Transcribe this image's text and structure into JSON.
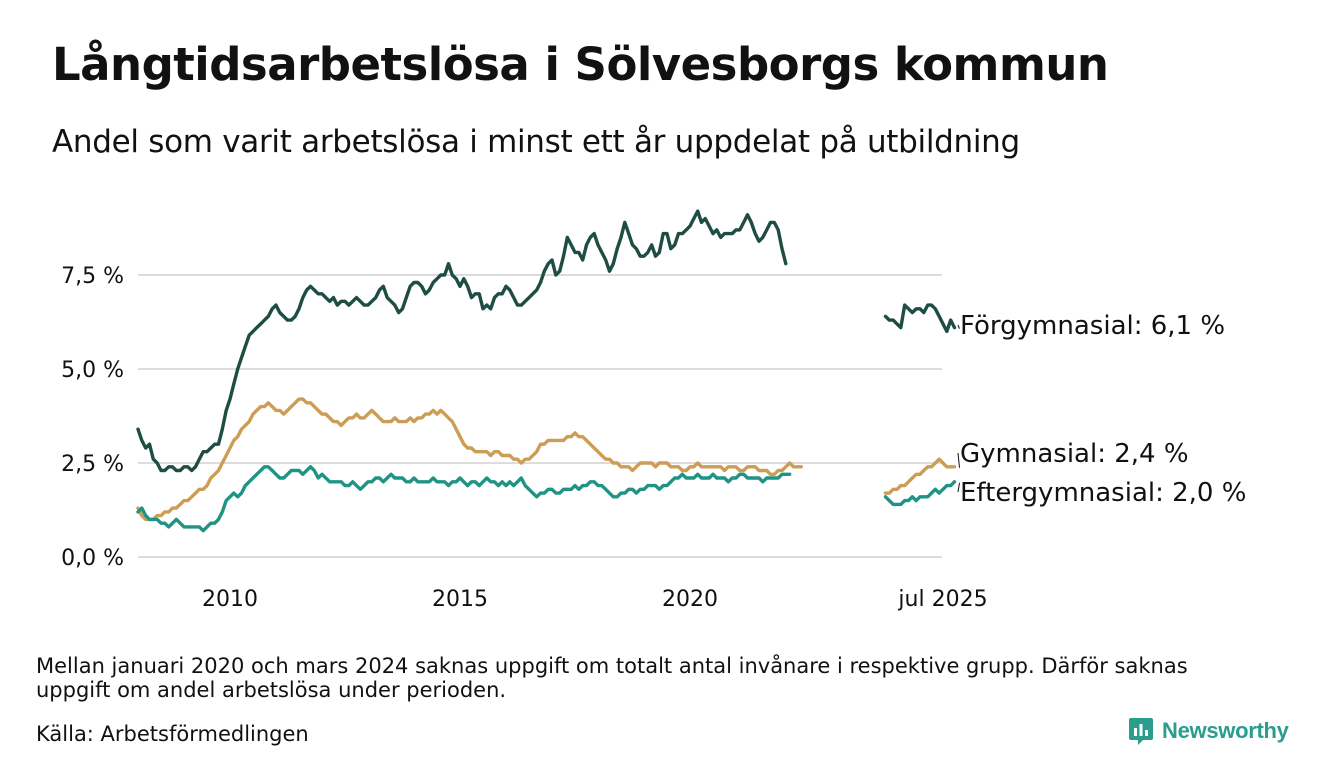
{
  "header": {
    "title": "Långtidsarbetslösa i Sölvesborgs kommun",
    "subtitle": "Andel som varit arbetslösa i minst ett år uppdelat på utbildning"
  },
  "footer": {
    "note": "Mellan januari 2020 och mars 2024 saknas uppgift om totalt antal invånare i respektive grupp. Därför saknas uppgift om andel arbetslösa under perioden.",
    "source": "Källa: Arbetsförmedlingen",
    "brand": "Newsworthy",
    "brand_color": "#2a9d8f"
  },
  "chart_data": {
    "type": "line",
    "title": "Långtidsarbetslösa i Sölvesborgs kommun",
    "subtitle": "Andel som varit arbetslösa i minst ett år uppdelat på utbildning",
    "xlabel": "",
    "ylabel": "",
    "x_ticks": [
      "2010",
      "2015",
      "2020",
      "jul 2025"
    ],
    "y_ticks": [
      "0,0 %",
      "2,5 %",
      "5,0 %",
      "7,5 %"
    ],
    "ylim": [
      0,
      9.6
    ],
    "grid": "horizontal",
    "legend": "direct labels at line ends (right)",
    "series": [
      {
        "name": "Förgymnasial",
        "end_label": "Förgymnasial: 6,1 %",
        "color": "#1e4d44",
        "segments": [
          {
            "x_start": "2008-01",
            "values": [
              3.4,
              3.1,
              2.9,
              3.0,
              2.6,
              2.5,
              2.3,
              2.3,
              2.4,
              2.4,
              2.3,
              2.3,
              2.4,
              2.4,
              2.3,
              2.4,
              2.6,
              2.8,
              2.8,
              2.9,
              3.0,
              3.0,
              3.4,
              3.9,
              4.2,
              4.6,
              5.0,
              5.3,
              5.6,
              5.9,
              6.0,
              6.1,
              6.2,
              6.3,
              6.4,
              6.6,
              6.7,
              6.5,
              6.4,
              6.3,
              6.3,
              6.4,
              6.6,
              6.9,
              7.1,
              7.2,
              7.1,
              7.0,
              7.0,
              6.9,
              6.8,
              6.9,
              6.7,
              6.8,
              6.8,
              6.7,
              6.8,
              6.9,
              6.8,
              6.7,
              6.7,
              6.8,
              6.9,
              7.1,
              7.2,
              6.9,
              6.8,
              6.7,
              6.5,
              6.6,
              6.9,
              7.2,
              7.3,
              7.3,
              7.2,
              7.0,
              7.1,
              7.3,
              7.4,
              7.5,
              7.5,
              7.8,
              7.5,
              7.4,
              7.2,
              7.4,
              7.2,
              6.9,
              7.0,
              7.0,
              6.6,
              6.7,
              6.6,
              6.9,
              7.0,
              7.0,
              7.2,
              7.1,
              6.9,
              6.7,
              6.7,
              6.8,
              6.9,
              7.0,
              7.1,
              7.3,
              7.6,
              7.8,
              7.9,
              7.5,
              7.6,
              8.0,
              8.5,
              8.3,
              8.1,
              8.1,
              7.9,
              8.3,
              8.5,
              8.6,
              8.3,
              8.1,
              7.9,
              7.6,
              7.8,
              8.2,
              8.5,
              8.9,
              8.6,
              8.3,
              8.2,
              8.0,
              8.0,
              8.1,
              8.3,
              8.0,
              8.1,
              8.6,
              8.6,
              8.2,
              8.3,
              8.6,
              8.6,
              8.7,
              8.8,
              9.0,
              9.2,
              8.9,
              9.0,
              8.8,
              8.6,
              8.7,
              8.5,
              8.6,
              8.6,
              8.6,
              8.7,
              8.7,
              8.9,
              9.1,
              8.9,
              8.6,
              8.4,
              8.5,
              8.7,
              8.9,
              8.9,
              8.7,
              8.2,
              7.8
            ]
          },
          {
            "x_start": "2024-04",
            "values": [
              6.4,
              6.3,
              6.3,
              6.2,
              6.1,
              6.7,
              6.6,
              6.5,
              6.6,
              6.6,
              6.5,
              6.7,
              6.7,
              6.6,
              6.4,
              6.2,
              6.0,
              6.3,
              6.1
            ]
          }
        ]
      },
      {
        "name": "Gymnasial",
        "end_label": "Gymnasial: 2,4 %",
        "color": "#cc9d55",
        "segments": [
          {
            "x_start": "2008-01",
            "values": [
              1.3,
              1.1,
              1.0,
              1.0,
              1.0,
              1.1,
              1.1,
              1.2,
              1.2,
              1.3,
              1.3,
              1.4,
              1.5,
              1.5,
              1.6,
              1.7,
              1.8,
              1.8,
              1.9,
              2.1,
              2.2,
              2.3,
              2.5,
              2.7,
              2.9,
              3.1,
              3.2,
              3.4,
              3.5,
              3.6,
              3.8,
              3.9,
              4.0,
              4.0,
              4.1,
              4.0,
              3.9,
              3.9,
              3.8,
              3.9,
              4.0,
              4.1,
              4.2,
              4.2,
              4.1,
              4.1,
              4.0,
              3.9,
              3.8,
              3.8,
              3.7,
              3.6,
              3.6,
              3.5,
              3.6,
              3.7,
              3.7,
              3.8,
              3.7,
              3.7,
              3.8,
              3.9,
              3.8,
              3.7,
              3.6,
              3.6,
              3.6,
              3.7,
              3.6,
              3.6,
              3.6,
              3.7,
              3.6,
              3.7,
              3.7,
              3.8,
              3.8,
              3.9,
              3.8,
              3.9,
              3.8,
              3.7,
              3.6,
              3.4,
              3.2,
              3.0,
              2.9,
              2.9,
              2.8,
              2.8,
              2.8,
              2.8,
              2.7,
              2.8,
              2.8,
              2.7,
              2.7,
              2.7,
              2.6,
              2.6,
              2.5,
              2.6,
              2.6,
              2.7,
              2.8,
              3.0,
              3.0,
              3.1,
              3.1,
              3.1,
              3.1,
              3.1,
              3.2,
              3.2,
              3.3,
              3.2,
              3.2,
              3.1,
              3.0,
              2.9,
              2.8,
              2.7,
              2.6,
              2.6,
              2.5,
              2.5,
              2.4,
              2.4,
              2.4,
              2.3,
              2.4,
              2.5,
              2.5,
              2.5,
              2.5,
              2.4,
              2.5,
              2.5,
              2.5,
              2.4,
              2.4,
              2.4,
              2.3,
              2.3,
              2.4,
              2.4,
              2.5,
              2.4,
              2.4,
              2.4,
              2.4,
              2.4,
              2.4,
              2.3,
              2.4,
              2.4,
              2.4,
              2.3,
              2.3,
              2.4,
              2.4,
              2.4,
              2.3,
              2.3,
              2.3,
              2.2,
              2.2,
              2.3,
              2.3,
              2.4,
              2.5,
              2.4,
              2.4,
              2.4
            ]
          },
          {
            "x_start": "2024-04",
            "values": [
              1.7,
              1.7,
              1.8,
              1.8,
              1.9,
              1.9,
              2.0,
              2.1,
              2.2,
              2.2,
              2.3,
              2.4,
              2.4,
              2.5,
              2.6,
              2.5,
              2.4,
              2.4,
              2.4
            ]
          }
        ]
      },
      {
        "name": "Eftergymnasial",
        "end_label": "Eftergymnasial: 2,0 %",
        "color": "#1f9484",
        "segments": [
          {
            "x_start": "2008-01",
            "values": [
              1.2,
              1.3,
              1.1,
              1.0,
              1.0,
              1.0,
              0.9,
              0.9,
              0.8,
              0.9,
              1.0,
              0.9,
              0.8,
              0.8,
              0.8,
              0.8,
              0.8,
              0.7,
              0.8,
              0.9,
              0.9,
              1.0,
              1.2,
              1.5,
              1.6,
              1.7,
              1.6,
              1.7,
              1.9,
              2.0,
              2.1,
              2.2,
              2.3,
              2.4,
              2.4,
              2.3,
              2.2,
              2.1,
              2.1,
              2.2,
              2.3,
              2.3,
              2.3,
              2.2,
              2.3,
              2.4,
              2.3,
              2.1,
              2.2,
              2.1,
              2.0,
              2.0,
              2.0,
              2.0,
              1.9,
              1.9,
              2.0,
              1.9,
              1.8,
              1.9,
              2.0,
              2.0,
              2.1,
              2.1,
              2.0,
              2.1,
              2.2,
              2.1,
              2.1,
              2.1,
              2.0,
              2.0,
              2.1,
              2.0,
              2.0,
              2.0,
              2.0,
              2.1,
              2.0,
              2.0,
              2.0,
              1.9,
              2.0,
              2.0,
              2.1,
              2.0,
              1.9,
              2.0,
              2.0,
              1.9,
              2.0,
              2.1,
              2.0,
              2.0,
              1.9,
              2.0,
              1.9,
              2.0,
              1.9,
              2.0,
              2.1,
              1.9,
              1.8,
              1.7,
              1.6,
              1.7,
              1.7,
              1.8,
              1.8,
              1.7,
              1.7,
              1.8,
              1.8,
              1.8,
              1.9,
              1.8,
              1.9,
              1.9,
              2.0,
              2.0,
              1.9,
              1.9,
              1.8,
              1.7,
              1.6,
              1.6,
              1.7,
              1.7,
              1.8,
              1.8,
              1.7,
              1.8,
              1.8,
              1.9,
              1.9,
              1.9,
              1.8,
              1.9,
              1.9,
              2.0,
              2.1,
              2.1,
              2.2,
              2.1,
              2.1,
              2.1,
              2.2,
              2.1,
              2.1,
              2.1,
              2.2,
              2.1,
              2.1,
              2.1,
              2.0,
              2.1,
              2.1,
              2.2,
              2.2,
              2.1,
              2.1,
              2.1,
              2.1,
              2.0,
              2.1,
              2.1,
              2.1,
              2.1,
              2.2,
              2.2,
              2.2
            ]
          },
          {
            "x_start": "2024-04",
            "values": [
              1.6,
              1.5,
              1.4,
              1.4,
              1.4,
              1.5,
              1.5,
              1.6,
              1.5,
              1.6,
              1.6,
              1.6,
              1.7,
              1.8,
              1.7,
              1.8,
              1.9,
              1.9,
              2.0
            ]
          }
        ]
      }
    ]
  }
}
